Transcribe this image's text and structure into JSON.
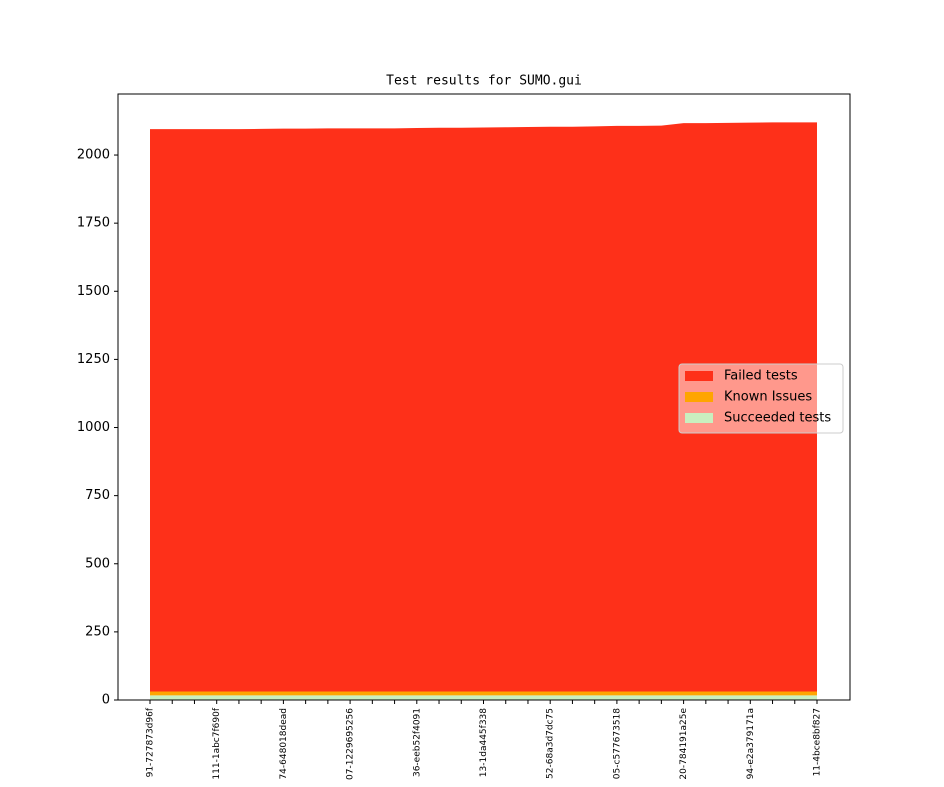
{
  "chart_data": {
    "type": "stacked_area",
    "title": "Test results for SUMO.gui",
    "categories": [
      "91-727873d96f",
      null,
      null,
      "111-1abc7f690f",
      null,
      null,
      "74-648018dead",
      null,
      null,
      "07-1229695256",
      null,
      null,
      "36-eeb52f4091",
      null,
      null,
      "13-1da445f338",
      null,
      null,
      "52-68a3d7dc75",
      null,
      null,
      "05-c577673518",
      null,
      null,
      "20-784191a25e",
      null,
      null,
      "94-e2a379171a",
      null,
      null,
      "11-4bce8bf827"
    ],
    "series": [
      {
        "name": "Succeeded tests",
        "color": "#c9efbf",
        "values": [
          17,
          17,
          17,
          17,
          17,
          17,
          17,
          17,
          17,
          17,
          17,
          17,
          17,
          17,
          17,
          17,
          17,
          17,
          17,
          17,
          17,
          17,
          17,
          17,
          17,
          17,
          17,
          17,
          17,
          17,
          17
        ]
      },
      {
        "name": "Known Issues",
        "color": "#ffa500",
        "values": [
          14,
          14,
          14,
          14,
          14,
          14,
          14,
          14,
          14,
          14,
          14,
          14,
          14,
          14,
          14,
          14,
          14,
          14,
          14,
          14,
          14,
          14,
          14,
          14,
          14,
          14,
          14,
          14,
          14,
          14,
          14
        ]
      },
      {
        "name": "Failed tests",
        "color": "#fe3019",
        "values": [
          2064,
          2064,
          2064,
          2064,
          2064,
          2065,
          2066,
          2066,
          2067,
          2067,
          2067,
          2067,
          2068,
          2069,
          2069,
          2070,
          2071,
          2072,
          2073,
          2073,
          2074,
          2076,
          2076,
          2077,
          2086,
          2086,
          2087,
          2088,
          2089,
          2089,
          2089
        ]
      }
    ],
    "ylim": [
      0,
      2224
    ],
    "yticks": [
      0,
      250,
      500,
      750,
      1000,
      1250,
      1500,
      1750,
      2000
    ],
    "legend": "center right"
  }
}
